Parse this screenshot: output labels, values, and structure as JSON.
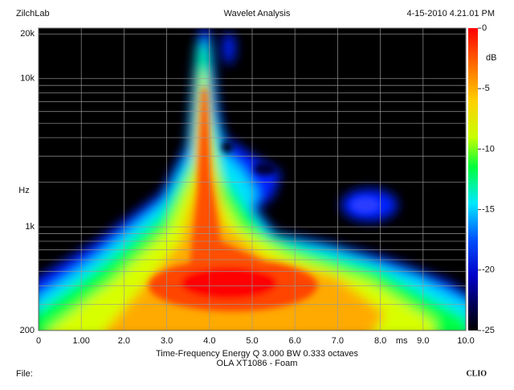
{
  "chart_data": {
    "type": "heatmap",
    "title": "Wavelet Analysis",
    "header_left": "ZilchLab",
    "header_right": "4-15-2010 4.21.01 PM",
    "subtitle": "Time-Frequency Energy  Q 3.000 BW 0.333 octaves",
    "caption": "OLA XT1086 - Foam",
    "footer_left": "File:",
    "footer_right": "CLIO",
    "x_label": "ms",
    "y_label": "Hz",
    "colorbar_label": "dB",
    "xlim": [
      0,
      10
    ],
    "xticks": [
      0,
      {
        "value": 1,
        "label": "1.00"
      },
      {
        "value": 2,
        "label": "2.0"
      },
      {
        "value": 3,
        "label": "3.0"
      },
      {
        "value": 4,
        "label": "4.0"
      },
      {
        "value": 5,
        "label": "5.0"
      },
      {
        "value": 6,
        "label": "6.0"
      },
      {
        "value": 7,
        "label": "7.0"
      },
      {
        "value": 8,
        "label": "8.0"
      },
      {
        "value": 9,
        "label": "9.0"
      },
      {
        "value": 10,
        "label": "10.0"
      }
    ],
    "ylim": [
      200,
      21900
    ],
    "log_y": true,
    "yticks": [
      200,
      {
        "value": 1000,
        "label": "1k"
      },
      {
        "value": 10000,
        "label": "10k"
      },
      {
        "value": 20000,
        "label": "20k"
      }
    ],
    "y_minor_ticks": [
      300,
      400,
      500,
      600,
      700,
      800,
      900,
      2000,
      3000,
      4000,
      5000,
      6000,
      7000,
      8000,
      9000
    ],
    "colorbar_lim": [
      -25,
      0
    ],
    "colorbar_ticks": [
      0,
      -5,
      -10,
      -15,
      -20,
      -25
    ],
    "grid": true
  }
}
